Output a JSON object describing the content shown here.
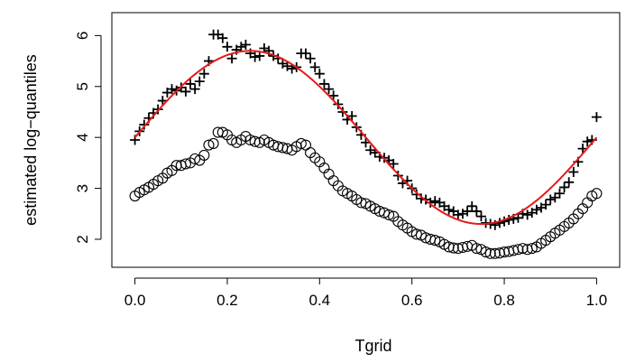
{
  "chart_data": {
    "type": "scatter",
    "title": "",
    "xlabel": "Tgrid",
    "ylabel": "estimated log−quantiles",
    "xlim": [
      -0.05,
      1.05
    ],
    "ylim": [
      1.45,
      6.45
    ],
    "x_ticks": [
      "0.0",
      "0.2",
      "0.4",
      "0.6",
      "0.8",
      "1.0"
    ],
    "y_ticks": [
      "2",
      "3",
      "4",
      "5",
      "6"
    ],
    "grid": false,
    "legend": "none",
    "series": [
      {
        "marker": "plus",
        "color": "#000000",
        "x": [
          0.0,
          0.01,
          0.02,
          0.03,
          0.04,
          0.05,
          0.06,
          0.07,
          0.08,
          0.09,
          0.1,
          0.11,
          0.12,
          0.13,
          0.14,
          0.15,
          0.16,
          0.17,
          0.18,
          0.19,
          0.2,
          0.21,
          0.22,
          0.23,
          0.24,
          0.25,
          0.26,
          0.27,
          0.28,
          0.29,
          0.3,
          0.31,
          0.32,
          0.33,
          0.34,
          0.35,
          0.36,
          0.37,
          0.38,
          0.39,
          0.4,
          0.41,
          0.42,
          0.43,
          0.44,
          0.45,
          0.46,
          0.47,
          0.48,
          0.49,
          0.5,
          0.51,
          0.52,
          0.53,
          0.54,
          0.55,
          0.56,
          0.57,
          0.58,
          0.59,
          0.6,
          0.61,
          0.62,
          0.63,
          0.64,
          0.65,
          0.66,
          0.67,
          0.68,
          0.69,
          0.7,
          0.71,
          0.72,
          0.73,
          0.74,
          0.75,
          0.76,
          0.77,
          0.78,
          0.79,
          0.8,
          0.81,
          0.82,
          0.83,
          0.84,
          0.85,
          0.86,
          0.87,
          0.88,
          0.89,
          0.9,
          0.91,
          0.92,
          0.93,
          0.94,
          0.95,
          0.96,
          0.97,
          0.98,
          0.99,
          1.0
        ],
        "y": [
          3.95,
          4.12,
          4.25,
          4.38,
          4.48,
          4.55,
          4.72,
          4.88,
          4.95,
          4.92,
          4.98,
          4.9,
          5.05,
          4.95,
          5.1,
          5.25,
          5.5,
          6.02,
          6.02,
          5.95,
          5.78,
          5.55,
          5.72,
          5.78,
          5.82,
          5.65,
          5.58,
          5.6,
          5.75,
          5.7,
          5.6,
          5.55,
          5.45,
          5.4,
          5.35,
          5.38,
          5.65,
          5.65,
          5.55,
          5.38,
          5.25,
          5.05,
          4.95,
          4.82,
          4.65,
          4.5,
          4.35,
          4.42,
          4.2,
          4.05,
          3.9,
          3.75,
          3.7,
          3.62,
          3.6,
          3.55,
          3.48,
          3.25,
          3.1,
          3.15,
          3.0,
          2.88,
          2.8,
          2.78,
          2.72,
          2.75,
          2.72,
          2.65,
          2.58,
          2.55,
          2.48,
          2.5,
          2.55,
          2.65,
          2.55,
          2.45,
          2.32,
          2.3,
          2.28,
          2.32,
          2.35,
          2.38,
          2.4,
          2.42,
          2.5,
          2.48,
          2.52,
          2.58,
          2.62,
          2.68,
          2.78,
          2.82,
          2.9,
          3.02,
          3.12,
          3.32,
          3.52,
          3.78,
          3.92,
          3.95,
          4.4
        ]
      },
      {
        "marker": "circle",
        "color": "#000000",
        "x": [
          0.0,
          0.01,
          0.02,
          0.03,
          0.04,
          0.05,
          0.06,
          0.07,
          0.08,
          0.09,
          0.1,
          0.11,
          0.12,
          0.13,
          0.14,
          0.15,
          0.16,
          0.17,
          0.18,
          0.19,
          0.2,
          0.21,
          0.22,
          0.23,
          0.24,
          0.25,
          0.26,
          0.27,
          0.28,
          0.29,
          0.3,
          0.31,
          0.32,
          0.33,
          0.34,
          0.35,
          0.36,
          0.37,
          0.38,
          0.39,
          0.4,
          0.41,
          0.42,
          0.43,
          0.44,
          0.45,
          0.46,
          0.47,
          0.48,
          0.49,
          0.5,
          0.51,
          0.52,
          0.53,
          0.54,
          0.55,
          0.56,
          0.57,
          0.58,
          0.59,
          0.6,
          0.61,
          0.62,
          0.63,
          0.64,
          0.65,
          0.66,
          0.67,
          0.68,
          0.69,
          0.7,
          0.71,
          0.72,
          0.73,
          0.74,
          0.75,
          0.76,
          0.77,
          0.78,
          0.79,
          0.8,
          0.81,
          0.82,
          0.83,
          0.84,
          0.85,
          0.86,
          0.87,
          0.88,
          0.89,
          0.9,
          0.91,
          0.92,
          0.93,
          0.94,
          0.95,
          0.96,
          0.97,
          0.98,
          0.99,
          1.0
        ],
        "y": [
          2.85,
          2.92,
          2.97,
          3.02,
          3.08,
          3.15,
          3.2,
          3.3,
          3.35,
          3.45,
          3.45,
          3.48,
          3.5,
          3.58,
          3.55,
          3.65,
          3.85,
          3.88,
          4.1,
          4.1,
          4.05,
          3.95,
          3.9,
          3.95,
          4.02,
          3.95,
          3.92,
          3.9,
          3.95,
          3.9,
          3.85,
          3.82,
          3.8,
          3.78,
          3.75,
          3.82,
          3.88,
          3.85,
          3.7,
          3.6,
          3.52,
          3.4,
          3.28,
          3.15,
          3.05,
          2.95,
          2.9,
          2.85,
          2.78,
          2.72,
          2.7,
          2.65,
          2.6,
          2.55,
          2.52,
          2.48,
          2.45,
          2.35,
          2.28,
          2.22,
          2.15,
          2.1,
          2.08,
          2.03,
          2.0,
          1.98,
          1.95,
          1.9,
          1.85,
          1.83,
          1.82,
          1.84,
          1.86,
          1.88,
          1.82,
          1.8,
          1.75,
          1.72,
          1.72,
          1.73,
          1.75,
          1.76,
          1.78,
          1.8,
          1.82,
          1.8,
          1.82,
          1.85,
          1.92,
          1.98,
          2.05,
          2.12,
          2.18,
          2.25,
          2.32,
          2.4,
          2.5,
          2.6,
          2.72,
          2.85,
          2.9
        ]
      },
      {
        "marker": "line",
        "color": "#e41a1c",
        "function": "4 + 1.7*sin(2*pi*x)"
      }
    ]
  }
}
